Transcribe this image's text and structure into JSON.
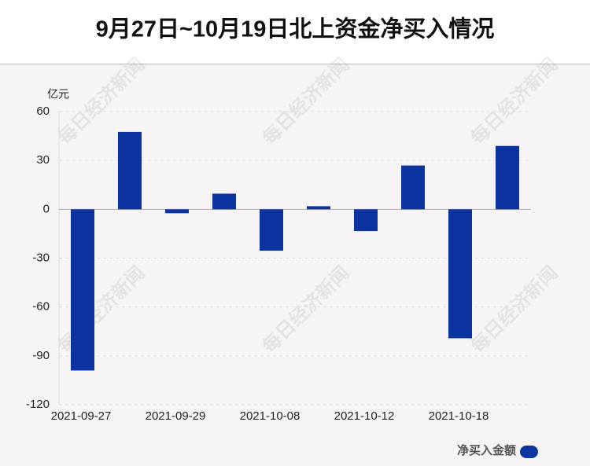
{
  "chart_data": {
    "type": "bar",
    "title": "9月27日~10月19日北上资金净买入情况",
    "y_axis_label": "亿元",
    "watermark": "每日经济新闻",
    "categories": [
      "2021-09-27",
      null,
      "2021-09-29",
      null,
      "2021-10-08",
      null,
      "2021-10-12",
      null,
      "2021-10-18",
      null
    ],
    "series": [
      {
        "name": "净买入金额",
        "color": "#0c34a0",
        "values": [
          -99,
          47.5,
          -2.4,
          9.6,
          -25.4,
          1.9,
          -13.4,
          26.9,
          -79.2,
          38.9
        ]
      }
    ],
    "ylim": [
      -120,
      60
    ],
    "yticks": [
      -120,
      -90,
      -60,
      -30,
      0,
      30,
      60
    ],
    "grid": true
  }
}
